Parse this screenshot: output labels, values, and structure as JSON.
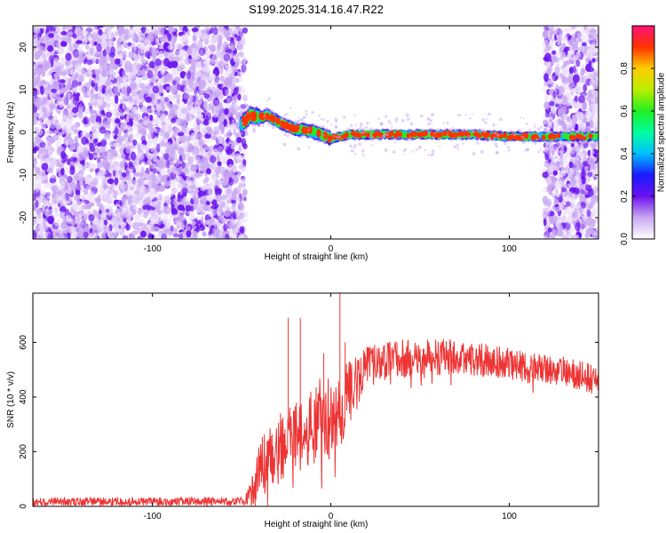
{
  "title": "S199.2025.314.16.47.R22",
  "colors": {
    "snr_line": "#ee3333",
    "noise_purple": "#6a12ee",
    "noise_light": "#c9a8f2",
    "axis": "#000000"
  },
  "chart_data": [
    {
      "type": "heatmap",
      "name": "spectrogram",
      "xlabel": "Height of straight line (km)",
      "ylabel": "Frequency (Hz)",
      "xlim": [
        -167,
        150
      ],
      "ylim": [
        -25,
        25
      ],
      "xticks": [
        -100,
        0,
        100
      ],
      "xtick_labels": [
        "-100",
        "0",
        "100"
      ],
      "yticks": [
        20,
        10,
        0,
        -10,
        -20
      ],
      "ytick_labels": [
        "20",
        "10",
        "0",
        "-10",
        "-20"
      ],
      "grid": false,
      "noise_regions": [
        {
          "x_range": [
            -167,
            -48
          ],
          "y_range": [
            -25,
            25
          ],
          "description": "scattered noise"
        },
        {
          "x_range": [
            120,
            150
          ],
          "y_range": [
            -25,
            25
          ],
          "description": "scattered noise"
        }
      ],
      "ridge": {
        "x": [
          -50,
          -45,
          -40,
          -35,
          -30,
          -25,
          -20,
          -15,
          -10,
          -5,
          0,
          10,
          20,
          40,
          60,
          80,
          100,
          118,
          125,
          135,
          145,
          150
        ],
        "freq": [
          2,
          4,
          3.5,
          4,
          2.5,
          1.5,
          0.8,
          0.5,
          0.2,
          -0.5,
          -1.5,
          -0.5,
          -0.5,
          -0.5,
          -0.5,
          -0.5,
          -1,
          -1,
          -1,
          -1,
          -1,
          -1
        ]
      },
      "colorbar": {
        "label": "Normalized spectral amplitude",
        "range": [
          0,
          1
        ],
        "ticks": [
          0.0,
          0.2,
          0.4,
          0.6,
          0.8
        ],
        "tick_labels": [
          "0.0",
          "0.2",
          "0.4",
          "0.6",
          "0.8"
        ],
        "colormap": [
          "#ffffff",
          "#c9a8f2",
          "#6a12ee",
          "#1a1aff",
          "#00bfff",
          "#00ffa0",
          "#22ee22",
          "#bbee00",
          "#ffcc00",
          "#ff3300",
          "#ff1177"
        ]
      }
    },
    {
      "type": "line",
      "name": "snr",
      "xlabel": "Height of straight line (km)",
      "ylabel": "SNR (10 * v/v)",
      "xlim": [
        -167,
        150
      ],
      "ylim": [
        0,
        780
      ],
      "xticks": [
        -100,
        0,
        100
      ],
      "xtick_labels": [
        "-100",
        "0",
        "100"
      ],
      "yticks": [
        0,
        200,
        400,
        600
      ],
      "ytick_labels": [
        "0",
        "200",
        "400",
        "600"
      ],
      "grid": false,
      "series": [
        {
          "name": "SNR",
          "envelope": {
            "x": [
              -167,
              -120,
              -80,
              -48,
              -42,
              -40,
              -35,
              -30,
              -25,
              -20,
              -15,
              -10,
              -5,
              0,
              5,
              10,
              15,
              20,
              30,
              40,
              50,
              60,
              70,
              80,
              90,
              100,
              110,
              120,
              130,
              140,
              150
            ],
            "base": [
              18,
              18,
              18,
              20,
              80,
              150,
              170,
              200,
              230,
              260,
              280,
              300,
              330,
              330,
              360,
              420,
              460,
              520,
              530,
              540,
              545,
              550,
              545,
              540,
              530,
              520,
              510,
              505,
              495,
              480,
              460
            ],
            "spread": [
              15,
              15,
              15,
              15,
              80,
              120,
              120,
              130,
              130,
              130,
              130,
              150,
              170,
              160,
              150,
              120,
              100,
              70,
              70,
              70,
              70,
              70,
              65,
              65,
              60,
              60,
              60,
              55,
              55,
              55,
              55
            ]
          },
          "spikes": [
            {
              "x": -24,
              "y": 690
            },
            {
              "x": -17,
              "y": 690
            },
            {
              "x": -4,
              "y": 560
            },
            {
              "x": 5,
              "y": 780
            },
            {
              "x": 8,
              "y": 600
            }
          ]
        }
      ]
    }
  ]
}
